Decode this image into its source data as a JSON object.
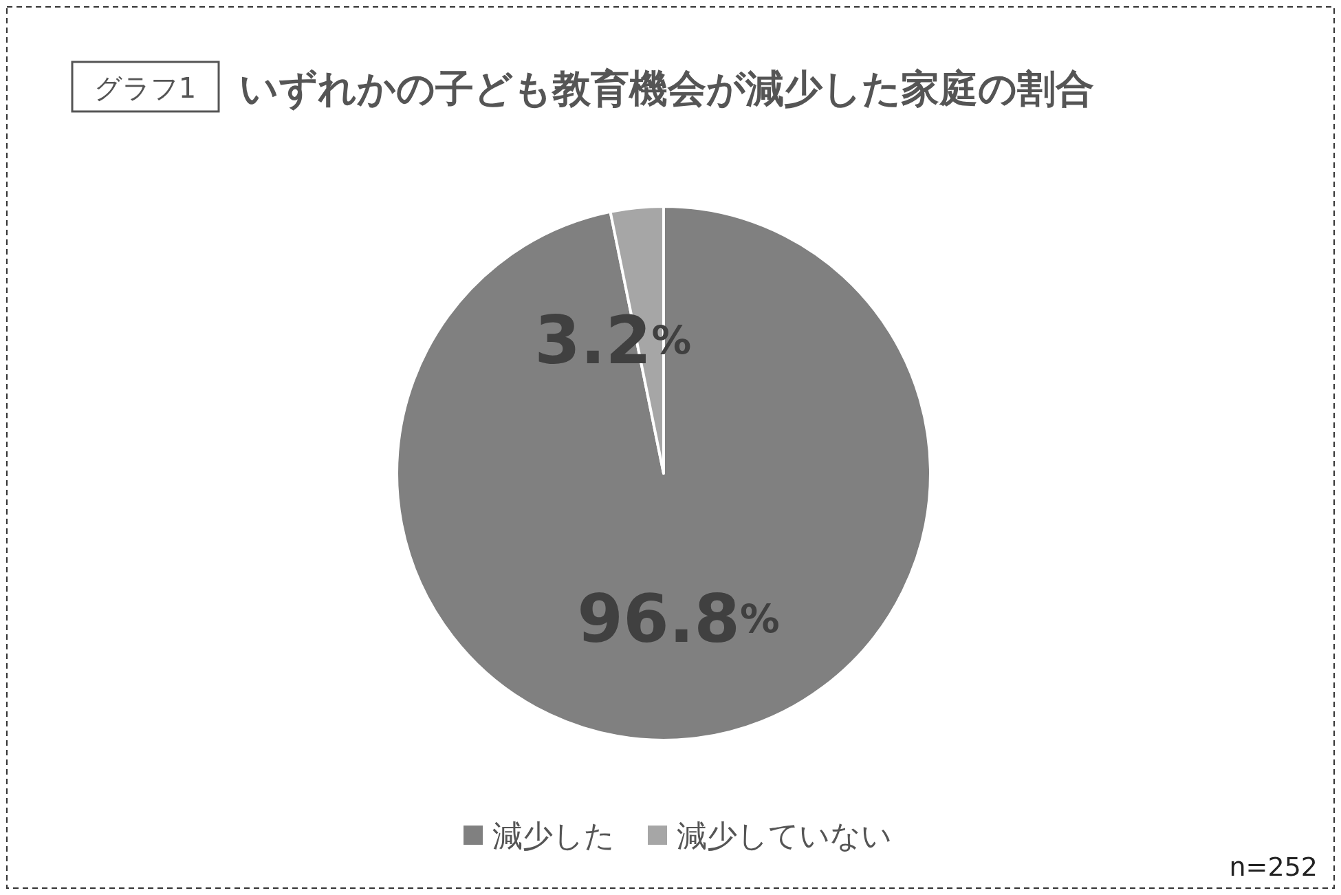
{
  "chart_data": {
    "type": "pie",
    "title": "いずれかの子ども教育機会が減少した家庭の割合",
    "categories": [
      "減少した",
      "減少していない"
    ],
    "values": [
      96.8,
      3.2
    ],
    "colors": [
      "#808080",
      "#a6a6a6"
    ],
    "value_labels": [
      "96.8%",
      "3.2%"
    ],
    "legend": "bottom",
    "annotations": [
      "グラフ1",
      "n=252"
    ]
  }
}
